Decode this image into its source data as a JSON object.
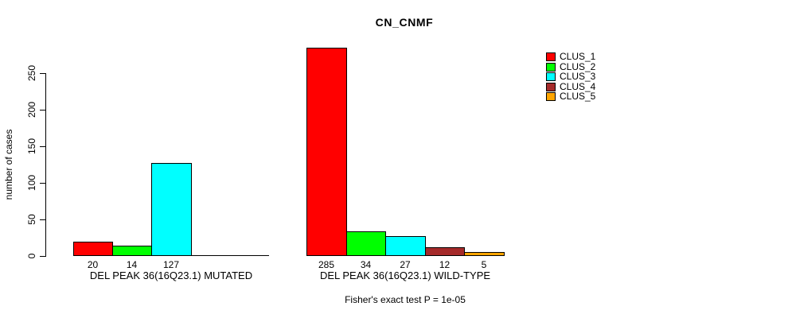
{
  "title": "CN_CNMF",
  "footer": "Fisher's exact test P = 1e-05",
  "chart_data": {
    "type": "bar",
    "title": "CN_CNMF",
    "xlabel": "",
    "ylabel": "number of cases",
    "ylim": [
      0,
      250
    ],
    "yticks": [
      0,
      50,
      100,
      150,
      200,
      250
    ],
    "grid": false,
    "legend_position": "top-right",
    "series_names": [
      "CLUS_1",
      "CLUS_2",
      "CLUS_3",
      "CLUS_4",
      "CLUS_5"
    ],
    "colors": [
      "#FF0000",
      "#00FF00",
      "#00FFFF",
      "#A52A2A",
      "#FFA500"
    ],
    "groups": [
      {
        "label": "DEL PEAK 36(16Q23.1) MUTATED",
        "values": [
          20,
          14,
          127,
          0,
          0
        ],
        "bar_labels": [
          "20",
          "14",
          "127",
          "",
          ""
        ]
      },
      {
        "label": "DEL PEAK 36(16Q23.1) WILD-TYPE",
        "values": [
          285,
          34,
          27,
          12,
          5
        ],
        "bar_labels": [
          "285",
          "34",
          "27",
          "12",
          "5"
        ]
      }
    ],
    "annotation": "Fisher's exact test P = 1e-05"
  }
}
